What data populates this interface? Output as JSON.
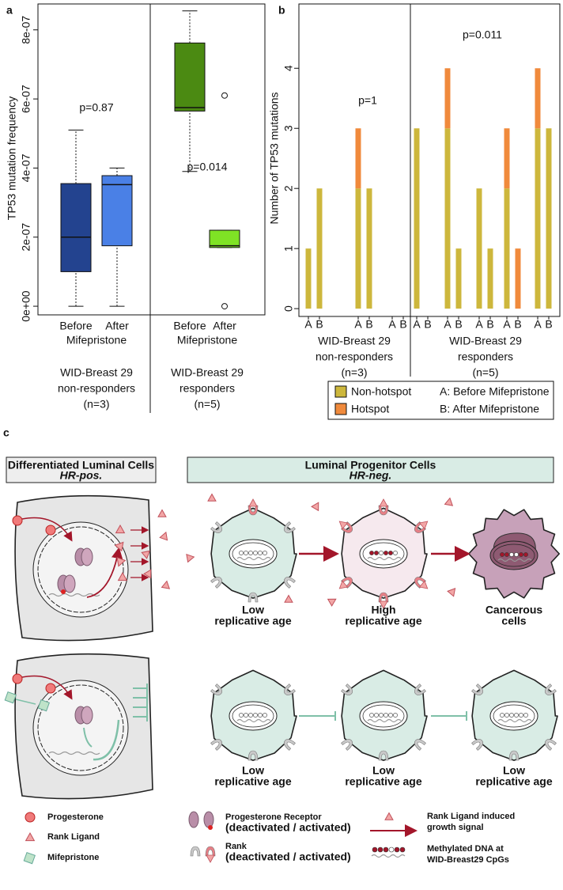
{
  "chart_data": [
    {
      "type": "box",
      "panel_label": "a",
      "ylabel": "TP53 mutation frequency",
      "ylim": [
        -2.5e-08,
        8.75e-07
      ],
      "yticks": [
        {
          "value": 0,
          "label": "0e+00"
        },
        {
          "value": 2e-07,
          "label": "2e-07"
        },
        {
          "value": 4e-07,
          "label": "4e-07"
        },
        {
          "value": 6e-07,
          "label": "6e-07"
        },
        {
          "value": 8e-07,
          "label": "8e-07"
        }
      ],
      "categories": [
        "Before",
        "After",
        "Before",
        "After"
      ],
      "category_note": "Mifepristone",
      "boxes": [
        {
          "color": "#23438f",
          "min": 0,
          "q1": 1e-07,
          "median": 2e-07,
          "q3": 3.55e-07,
          "max": 5.1e-07,
          "outliers": []
        },
        {
          "color": "#4a80e6",
          "min": 0,
          "q1": 1.75e-07,
          "median": 3.52e-07,
          "q3": 3.78e-07,
          "max": 4e-07,
          "outliers": []
        },
        {
          "color": "#4b8a12",
          "min": 3.9e-07,
          "q1": 5.65e-07,
          "median": 5.75e-07,
          "q3": 7.62e-07,
          "max": 8.55e-07,
          "outliers": []
        },
        {
          "color": "#7fe325",
          "min": 1.7e-07,
          "q1": 1.7e-07,
          "median": 1.75e-07,
          "q3": 2.2e-07,
          "max": 2.2e-07,
          "outliers": [
            6.1e-07,
            0
          ]
        }
      ],
      "groups": [
        {
          "lines": [
            "WID-Breast 29",
            "non-responders",
            "(n=3)"
          ]
        },
        {
          "lines": [
            "WID-Breast 29",
            "responders",
            "(n=5)"
          ]
        }
      ],
      "annotations": [
        "p=0.87",
        "p=0.014"
      ]
    },
    {
      "type": "bar",
      "stacked": true,
      "panel_label": "b",
      "ylabel": "Number of TP53 mutations",
      "ylim": [
        -0.13,
        5.07
      ],
      "yticks": [
        0,
        1,
        2,
        3,
        4
      ],
      "categories": [
        "A",
        "B",
        "A",
        "B",
        "A",
        "B",
        "A",
        "B",
        "A",
        "B",
        "A",
        "B",
        "A",
        "B",
        "A",
        "B"
      ],
      "series": [
        {
          "name": "Non-hotspot",
          "color": "#cdb73c",
          "values": [
            1,
            2,
            2,
            2,
            0,
            0,
            3,
            0,
            3,
            1,
            2,
            1,
            2,
            0,
            3,
            3
          ]
        },
        {
          "name": "Hotspot",
          "color": "#f08a3c",
          "values": [
            0,
            0,
            1,
            0,
            0,
            0,
            0,
            0,
            1,
            0,
            0,
            0,
            1,
            1,
            1,
            0
          ]
        }
      ],
      "legend_notes": [
        "A: Before Mifepristone",
        "B: After Mifepristone"
      ],
      "groups": [
        {
          "lines": [
            "WID-Breast 29",
            "non-responders",
            "(n=3)"
          ]
        },
        {
          "lines": [
            "WID-Breast 29",
            "responders",
            "(n=5)"
          ]
        }
      ],
      "annotations": [
        "p=1",
        "p=0.011"
      ]
    }
  ],
  "diagram": {
    "panel_label": "c",
    "headers": [
      {
        "title": "Differentiated Luminal Cells",
        "subtitle": "HR-pos."
      },
      {
        "title": "Luminal Progenitor Cells",
        "subtitle": "HR-neg."
      }
    ],
    "top_row": [
      {
        "state": "Low",
        "caption": "replicative age"
      },
      {
        "state": "High",
        "caption": "replicative age"
      },
      {
        "state": "Cancerous",
        "caption": "cells"
      }
    ],
    "bottom_row": [
      {
        "state": "Low",
        "caption": "replicative age"
      },
      {
        "state": "Low",
        "caption": "replicative age"
      },
      {
        "state": "Low",
        "caption": "replicative age"
      }
    ],
    "legend": [
      {
        "label": "Progesterone"
      },
      {
        "label": "Rank Ligand"
      },
      {
        "label": "Mifepristone"
      },
      {
        "label": "Progesterone Receptor",
        "note": "(deactivated / activated)"
      },
      {
        "label": "Rank",
        "note": "(deactivated / activated)"
      },
      {
        "label": "Rank Ligand induced",
        "note": "growth signal"
      },
      {
        "label": "Methylated DNA at",
        "note": "WID-Breast29 CpGs"
      }
    ]
  }
}
